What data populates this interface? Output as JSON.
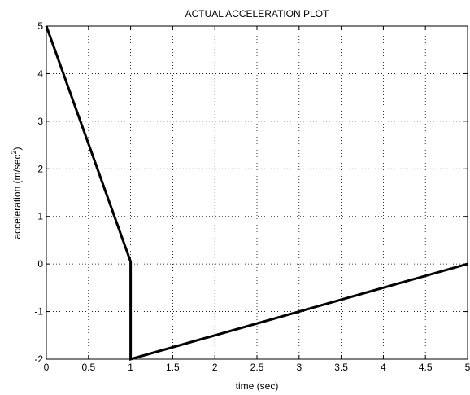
{
  "chart_data": {
    "type": "line",
    "title": "ACTUAL ACCELERATION PLOT",
    "xlabel": "time (sec)",
    "ylabel_main": "acceleration (m/sec",
    "ylabel_sup": "2",
    "ylabel_close": ")",
    "xlim": [
      0,
      5
    ],
    "ylim": [
      -2,
      5
    ],
    "grid": true,
    "x_ticks": [
      "0",
      "0.5",
      "1",
      "1.5",
      "2",
      "2.5",
      "3",
      "3.5",
      "4",
      "4.5",
      "5"
    ],
    "y_ticks": [
      "-2",
      "-1",
      "0",
      "1",
      "2",
      "3",
      "4",
      "5"
    ],
    "series": [
      {
        "color": "#000000",
        "points": [
          [
            0,
            5
          ],
          [
            1,
            0.05
          ],
          [
            1,
            -2
          ],
          [
            5,
            0
          ]
        ]
      }
    ]
  }
}
